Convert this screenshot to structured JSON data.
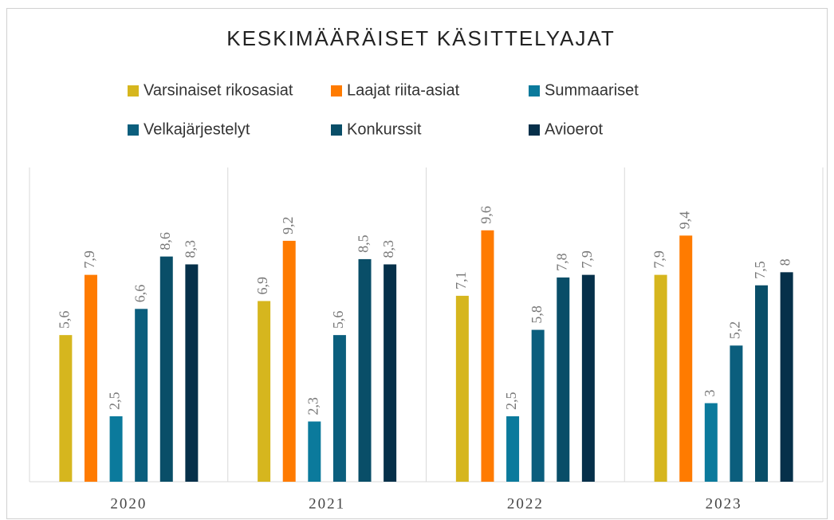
{
  "chart_data": {
    "type": "bar",
    "title": "KESKIMÄÄRÄISET KÄSITTELYAJAT",
    "categories": [
      "2020",
      "2021",
      "2022",
      "2023"
    ],
    "ylim": [
      0,
      12
    ],
    "series": [
      {
        "name": "Varsinaiset rikosasiat",
        "color": "#d6b61e",
        "values": [
          5.6,
          6.9,
          7.1,
          7.9
        ],
        "value_labels": [
          "5,6",
          "6,9",
          "7,1",
          "7,9"
        ]
      },
      {
        "name": "Laajat riita-asiat",
        "color": "#ff7b00",
        "values": [
          7.9,
          9.2,
          9.6,
          9.4
        ],
        "value_labels": [
          "7,9",
          "9,2",
          "9,6",
          "9,4"
        ]
      },
      {
        "name": "Summaariset",
        "color": "#0b7a9c",
        "values": [
          2.5,
          2.3,
          2.5,
          3
        ],
        "value_labels": [
          "2,5",
          "2,3",
          "2,5",
          "3"
        ]
      },
      {
        "name": "Velkajärjestelyt",
        "color": "#0b5e7d",
        "values": [
          6.6,
          5.6,
          5.8,
          5.2
        ],
        "value_labels": [
          "6,6",
          "5,6",
          "5,8",
          "5,2"
        ]
      },
      {
        "name": "Konkurssit",
        "color": "#094e68",
        "values": [
          8.6,
          8.5,
          7.8,
          7.5
        ],
        "value_labels": [
          "8,6",
          "8,5",
          "7,8",
          "7,5"
        ]
      },
      {
        "name": "Avioerot",
        "color": "#06304a",
        "values": [
          8.3,
          8.3,
          7.9,
          8
        ],
        "value_labels": [
          "8,3",
          "8,3",
          "7,9",
          "8"
        ]
      }
    ]
  }
}
